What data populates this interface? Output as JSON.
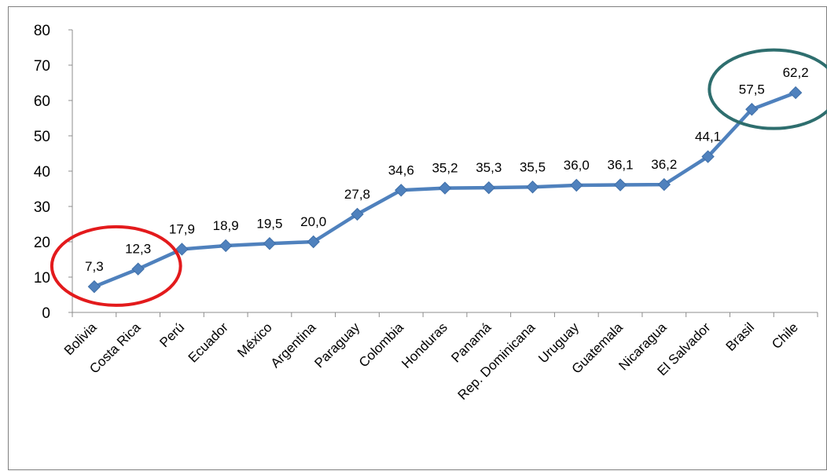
{
  "chart_data": {
    "type": "line",
    "title": "",
    "xlabel": "",
    "ylabel": "",
    "categories": [
      "Bolivia",
      "Costa Rica",
      "Perú",
      "Ecuador",
      "México",
      "Argentina",
      "Paraguay",
      "Colombia",
      "Honduras",
      "Panamá",
      "Rep. Dominicana",
      "Uruguay",
      "Guatemala",
      "Nicaragua",
      "El Salvador",
      "Brasil",
      "Chile"
    ],
    "series": [
      {
        "values": [
          7.3,
          12.3,
          17.9,
          18.9,
          19.5,
          20.0,
          27.8,
          34.6,
          35.2,
          35.3,
          35.5,
          36.0,
          36.1,
          36.2,
          44.1,
          57.5,
          62.2
        ],
        "labels": [
          "7,3",
          "12,3",
          "17,9",
          "18,9",
          "19,5",
          "20,0",
          "27,8",
          "34,6",
          "35,2",
          "35,3",
          "35,5",
          "36,0",
          "36,1",
          "36,2",
          "44,1",
          "57,5",
          "62,2"
        ],
        "color": "#4f81bd",
        "marker": "diamond"
      }
    ],
    "ylim": [
      0,
      80
    ],
    "yticks": [
      0,
      10,
      20,
      30,
      40,
      50,
      60,
      70,
      80
    ],
    "grid": false,
    "legend": "none",
    "annotations": [
      {
        "shape": "ellipse",
        "color": "#e31a1c",
        "encloses": [
          "Bolivia",
          "Costa Rica"
        ]
      },
      {
        "shape": "ellipse",
        "color": "#2e6e6e",
        "encloses": [
          "Brasil",
          "Chile"
        ]
      }
    ]
  }
}
